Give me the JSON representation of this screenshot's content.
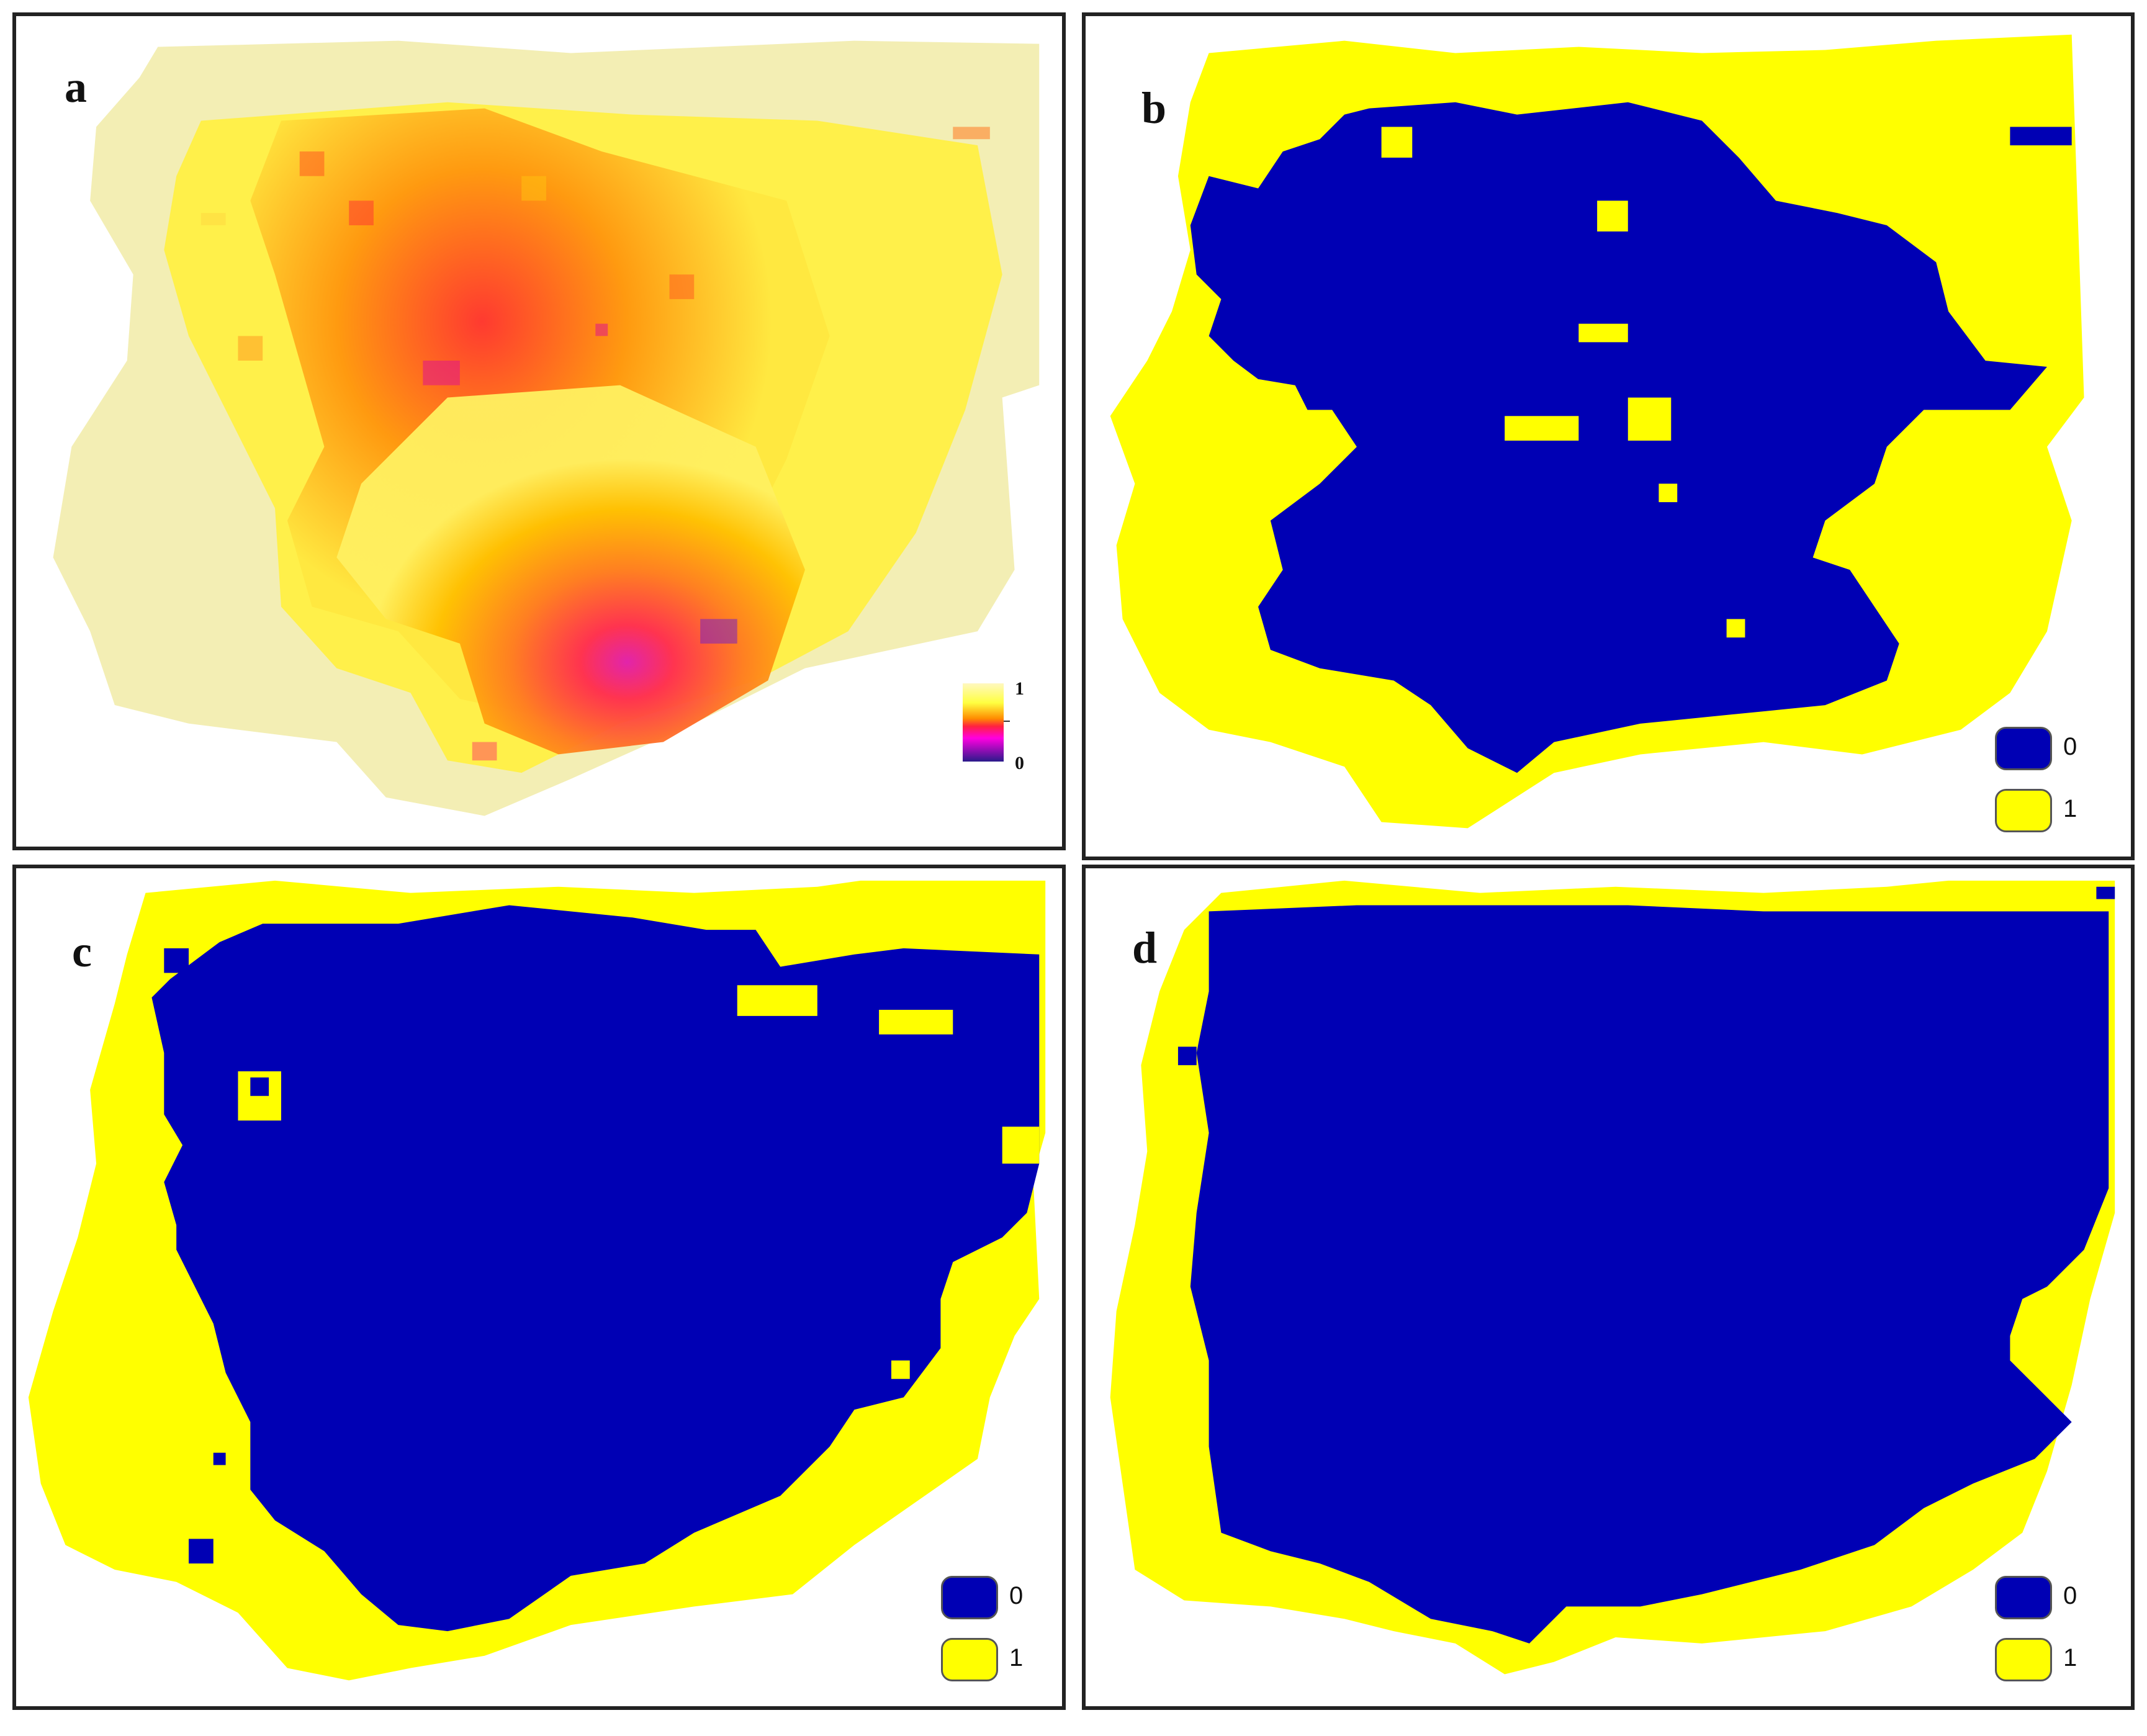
{
  "colors": {
    "class_0": "#0000B4",
    "class_1": "#FFFF00",
    "panel_border": "#222222",
    "continuous_high": "#FFF5B4",
    "continuous_mid": "#FF6A1A",
    "continuous_low": "#2A1A8A"
  },
  "panels": {
    "a": {
      "letter": "a",
      "type": "continuous-probability-map",
      "legend_max": "1",
      "legend_min": "0",
      "colormap": [
        "#2A1A8A",
        "#FF00E0",
        "#FF2040",
        "#FF8C00",
        "#FFFF40",
        "#FFF8C0"
      ]
    },
    "b": {
      "letter": "b",
      "type": "binary-map",
      "legend": [
        {
          "label": "0",
          "color": "#0000B4"
        },
        {
          "label": "1",
          "color": "#FFFF00"
        }
      ]
    },
    "c": {
      "letter": "c",
      "type": "binary-map",
      "legend": [
        {
          "label": "0",
          "color": "#0000B4"
        },
        {
          "label": "1",
          "color": "#FFFF00"
        }
      ]
    },
    "d": {
      "letter": "d",
      "type": "binary-map",
      "legend": [
        {
          "label": "0",
          "color": "#0000B4"
        },
        {
          "label": "1",
          "color": "#FFFF00"
        }
      ]
    }
  }
}
